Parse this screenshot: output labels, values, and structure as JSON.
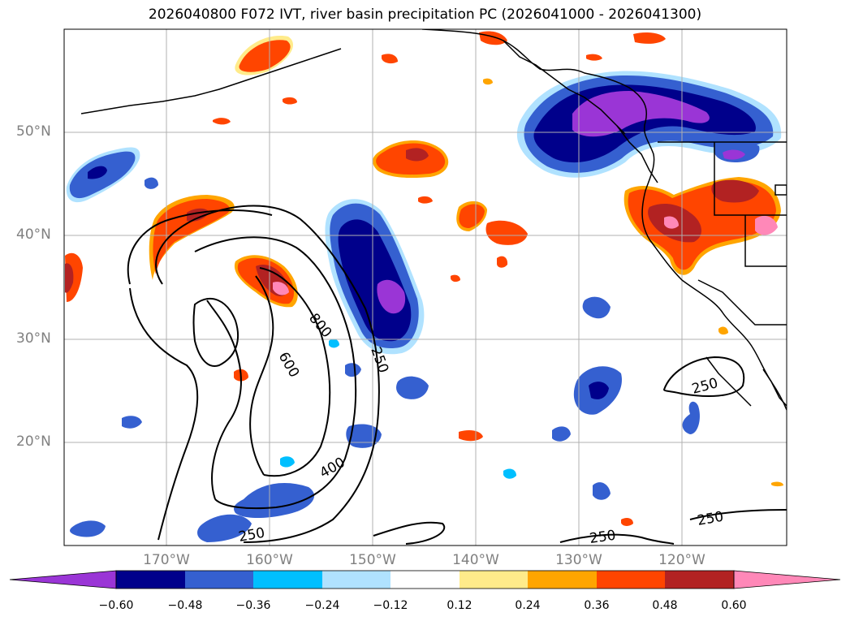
{
  "title": "2026040800 F072 IVT, river basin precipitation PC (2026041000 - 2026041300)",
  "lat_labels": [
    "50°N",
    "40°N",
    "30°N",
    "20°N"
  ],
  "lon_labels": [
    "170°W",
    "160°W",
    "150°W",
    "140°W",
    "130°W",
    "120°W"
  ],
  "contour_labels": [
    "800",
    "600",
    "250",
    "400",
    "250",
    "250",
    "250",
    "250"
  ],
  "colorbar": {
    "tick_labels": [
      "−0.60",
      "−0.48",
      "−0.36",
      "−0.24",
      "−0.12",
      "0.12",
      "0.24",
      "0.36",
      "0.48",
      "0.60"
    ],
    "colors": [
      "#9a35d6",
      "#00008b",
      "#3560d0",
      "#00bfff",
      "#b0e2ff",
      "#ffffff",
      "#ffeb8a",
      "#ffa500",
      "#ff4500",
      "#b22222",
      "#ff88b8"
    ]
  },
  "colors": {
    "grid": "#b0b0b0",
    "coast": "#000000",
    "tick_text": "#808080"
  }
}
